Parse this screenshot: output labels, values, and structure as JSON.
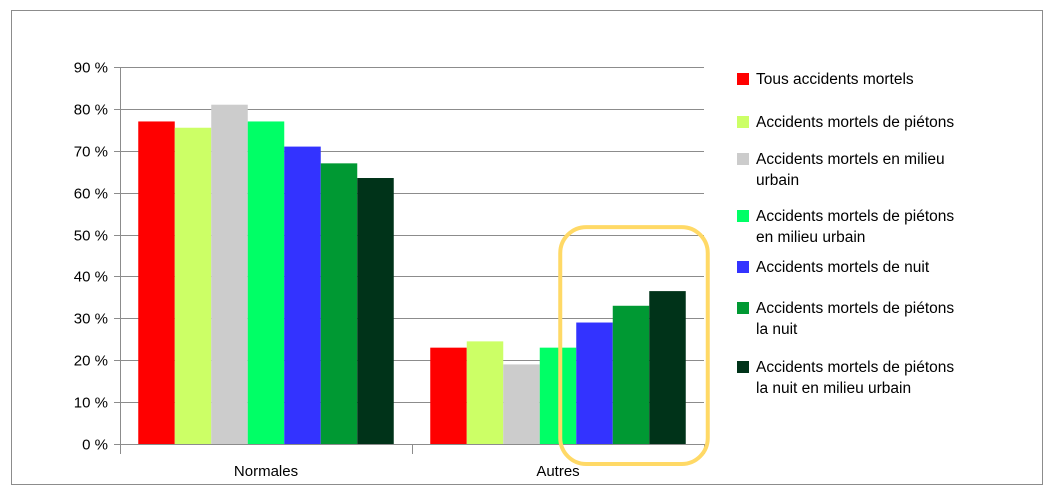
{
  "chart_data": {
    "type": "bar",
    "categories": [
      "Normales",
      "Autres"
    ],
    "ylim": [
      0,
      90
    ],
    "yticks": [
      0,
      10,
      20,
      30,
      40,
      50,
      60,
      70,
      80,
      90
    ],
    "y_tick_labels": [
      "0 %",
      "10 %",
      "20 %",
      "30 %",
      "40 %",
      "50 %",
      "60 %",
      "70 %",
      "80 %",
      "90 %"
    ],
    "grid": true,
    "legend_position": "right",
    "series": [
      {
        "name": "Tous accidents mortels",
        "legend_lines": [
          "Tous accidents mortels"
        ],
        "color": "#ff0000",
        "values": [
          77,
          23
        ]
      },
      {
        "name": "Accidents mortels de piétons",
        "legend_lines": [
          "Accidents mortels de piétons"
        ],
        "color": "#ccff66",
        "values": [
          75.5,
          24.5
        ]
      },
      {
        "name": "Accidents mortels en milieu urbain",
        "legend_lines": [
          "Accidents mortels en milieu",
          "urbain"
        ],
        "color": "#cccccc",
        "values": [
          81,
          19
        ]
      },
      {
        "name": "Accidents mortels de piétons en milieu urbain",
        "legend_lines": [
          "Accidents mortels de piétons",
          "en milieu urbain"
        ],
        "color": "#00ff66",
        "values": [
          77,
          23
        ]
      },
      {
        "name": "Accidents mortels de nuit",
        "legend_lines": [
          "Accidents mortels de nuit"
        ],
        "color": "#3333ff",
        "values": [
          71,
          29
        ]
      },
      {
        "name": "Accidents mortels de piétons la nuit",
        "legend_lines": [
          "Accidents mortels de piétons",
          "la nuit"
        ],
        "color": "#009933",
        "values": [
          67,
          33
        ]
      },
      {
        "name": "Accidents mortels de piétons la nuit en milieu urbain",
        "legend_lines": [
          "Accidents mortels de piétons",
          "la nuit en milieu urbain"
        ],
        "color": "#003319",
        "values": [
          63.5,
          36.5
        ]
      }
    ],
    "highlight": {
      "category": "Autres",
      "series_indices": [
        4,
        5,
        6
      ],
      "color": "#ffd966"
    }
  }
}
